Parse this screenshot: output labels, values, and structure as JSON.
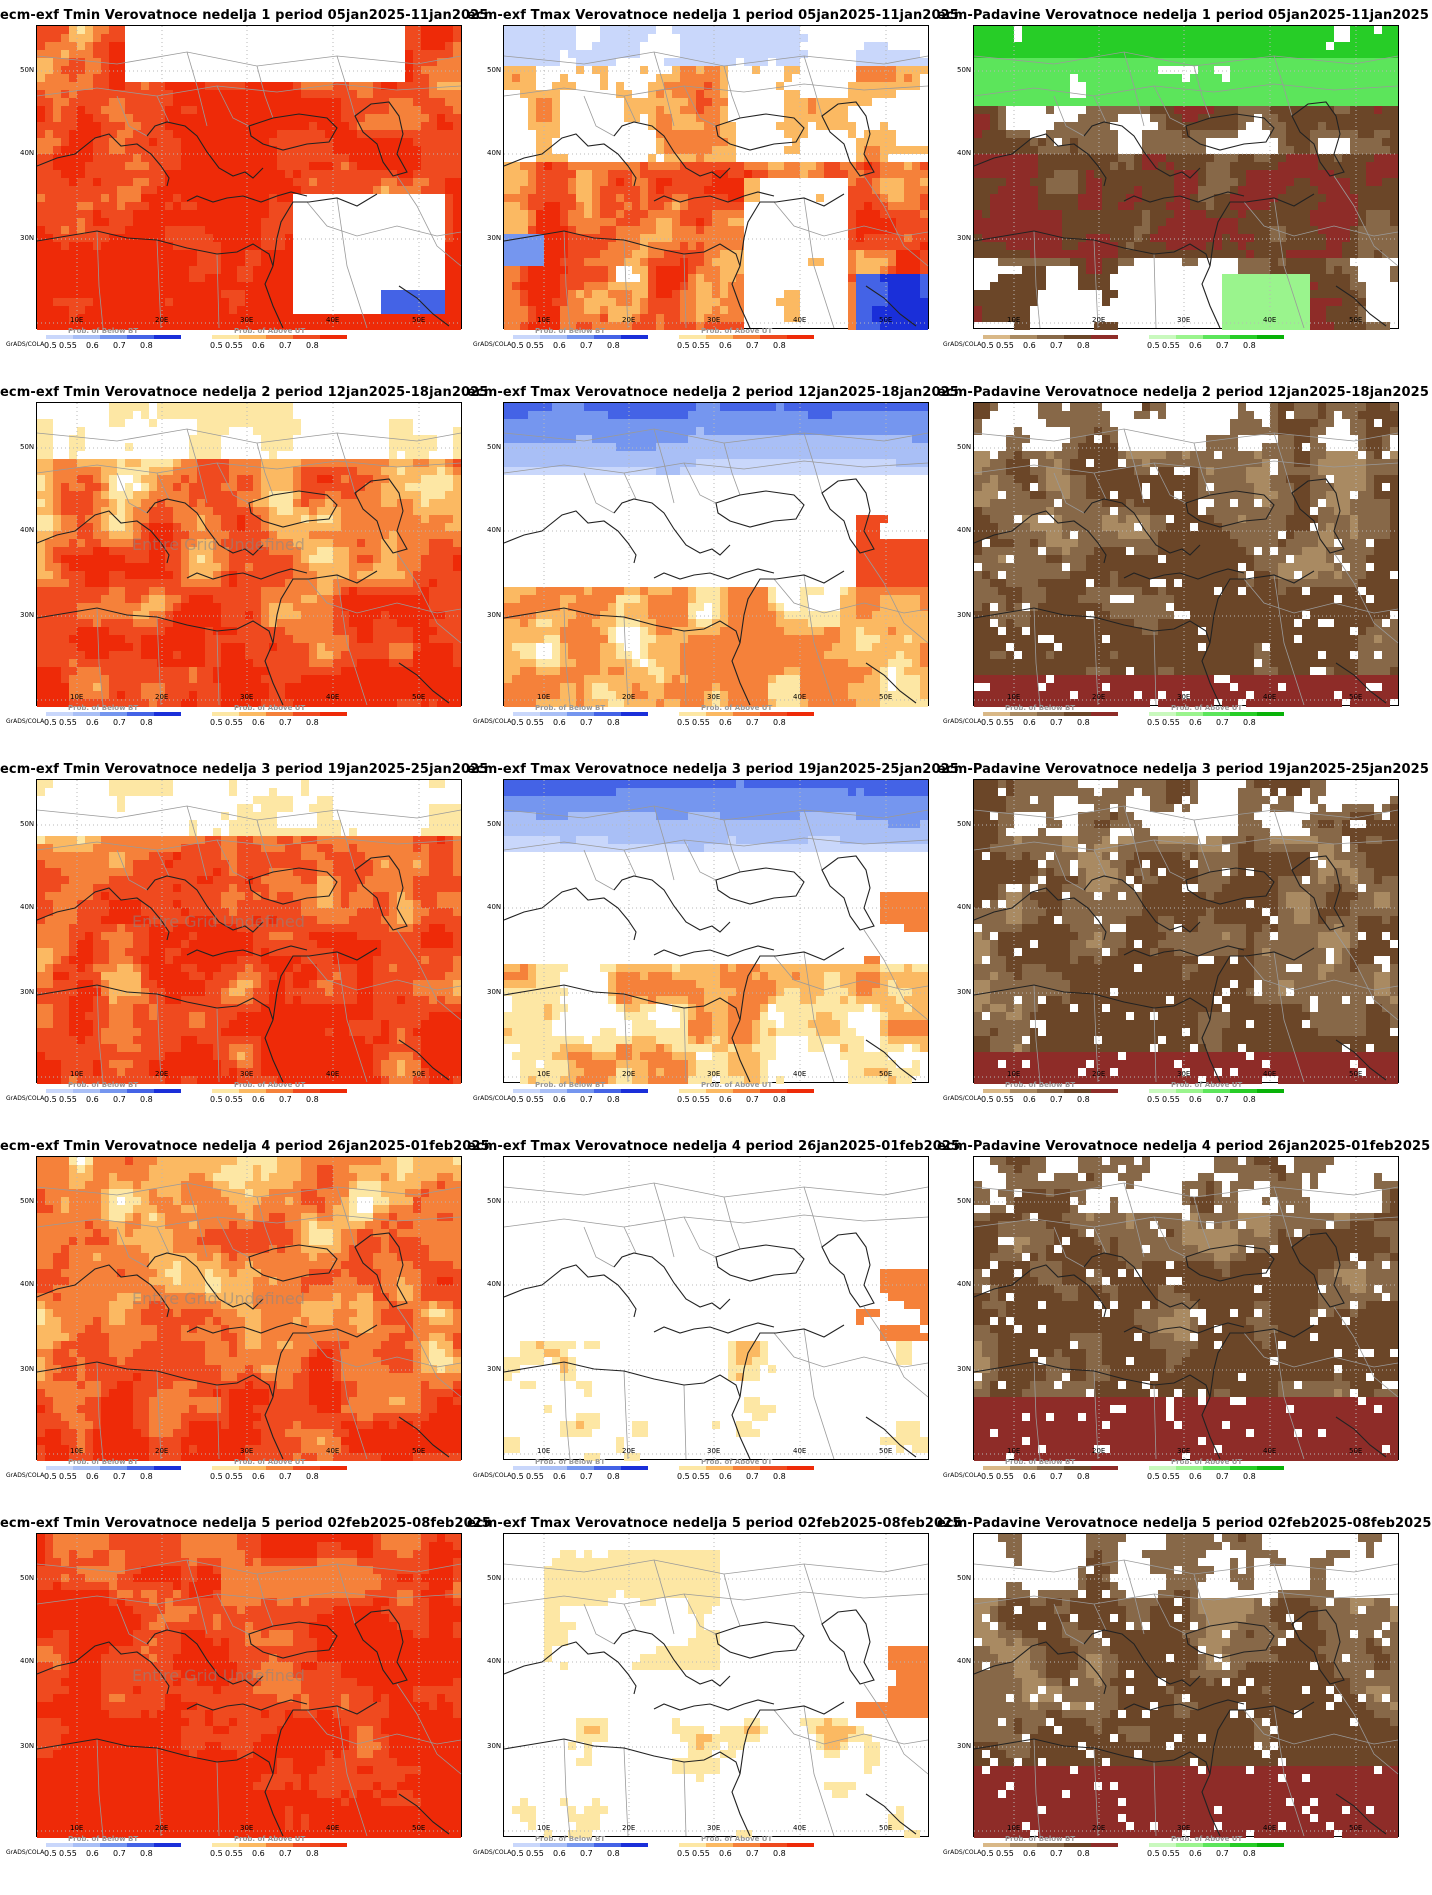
{
  "colors": {
    "red": [
      "#fde7a4",
      "#fbb962",
      "#f5813a",
      "#ef4a1f",
      "#ee2a08"
    ],
    "blue": [
      "#c9d7fb",
      "#a9bff6",
      "#7596ef",
      "#4463e6",
      "#1a2fd9"
    ],
    "brown": [
      "#d9b887",
      "#a98a62",
      "#876848",
      "#6b4628",
      "#8e2c28"
    ],
    "green": [
      "#c9f9be",
      "#9af48d",
      "#5ce55b",
      "#27cd27",
      "#08b208"
    ]
  },
  "axis_labels": {
    "lat": [
      "50N",
      "40N",
      "30N"
    ],
    "lon": [
      "10E",
      "20E",
      "30E",
      "40E",
      "50E"
    ]
  },
  "colorbar": {
    "grads_label": "GrADS/COLA",
    "ticks": [
      "0.5",
      "0.55",
      "0.6",
      "0.7",
      "0.8"
    ]
  },
  "rows": [
    {
      "panels": [
        {
          "title": "ecm-exf Tmin Verovatnoce nedelja 1 period 05jan2025-11jan2025",
          "kind": "tmin",
          "bar1_title": "Prob. of Below BT",
          "bar2_title": "Prob. of Above UT",
          "undefined_note": ""
        },
        {
          "title": "ecm-exf Tmax Verovatnoce nedelja 1 period 05jan2025-11jan2025",
          "kind": "tmax",
          "bar1_title": "Prob. of Below BT",
          "bar2_title": "Prob. of Above UT",
          "undefined_note": ""
        },
        {
          "title": "ecm-Padavine Verovatnoce nedelja 1 period 05jan2025-11jan2025",
          "kind": "precip",
          "bar1_title": "",
          "bar2_title": "",
          "undefined_note": ""
        }
      ]
    },
    {
      "panels": [
        {
          "title": "ecm-exf Tmin Verovatnoce nedelja 2 period 12jan2025-18jan2025",
          "kind": "tmin",
          "bar1_title": "Prob. of Below BT",
          "bar2_title": "Prob. of Above UT",
          "undefined_note": "Entire Grid Undefined"
        },
        {
          "title": "ecm-exf Tmax Verovatnoce nedelja 2 period 12jan2025-18jan2025",
          "kind": "tmax",
          "bar1_title": "Prob. of Below BT",
          "bar2_title": "Prob. of Above UT",
          "undefined_note": ""
        },
        {
          "title": "ecm-Padavine Verovatnoce nedelja 2 period 12jan2025-18jan2025",
          "kind": "precip",
          "bar1_title": "Prob. of Below BT",
          "bar2_title": "Prob. of Above UT",
          "undefined_note": ""
        }
      ]
    },
    {
      "panels": [
        {
          "title": "ecm-exf Tmin Verovatnoce nedelja 3 period 19jan2025-25jan2025",
          "kind": "tmin",
          "bar1_title": "Prob. of Below BT",
          "bar2_title": "Prob. of Above UT",
          "undefined_note": "Entire Grid Undefined"
        },
        {
          "title": "ecm-exf Tmax Verovatnoce nedelja 3 period 19jan2025-25jan2025",
          "kind": "tmax",
          "bar1_title": "Prob. of Below BT",
          "bar2_title": "Prob. of Above UT",
          "undefined_note": ""
        },
        {
          "title": "ecm-Padavine Verovatnoce nedelja 3 period 19jan2025-25jan2025",
          "kind": "precip",
          "bar1_title": "Prob. of Below BT",
          "bar2_title": "Prob. of Above UT",
          "undefined_note": ""
        }
      ]
    },
    {
      "panels": [
        {
          "title": "ecm-exf Tmin Verovatnoce nedelja 4 period 26jan2025-01feb2025",
          "kind": "tmin",
          "bar1_title": "Prob. of Below BT",
          "bar2_title": "Prob. of Above UT",
          "undefined_note": "Entire Grid Undefined"
        },
        {
          "title": "ecm-exf Tmax Verovatnoce nedelja 4 period 26jan2025-01feb2025",
          "kind": "tmax",
          "bar1_title": "Prob. of Below BT",
          "bar2_title": "Prob. of Above UT",
          "undefined_note": ""
        },
        {
          "title": "ecm-Padavine Verovatnoce nedelja 4 period 26jan2025-01feb2025",
          "kind": "precip",
          "bar1_title": "Prob. of Below BT",
          "bar2_title": "Prob. of Above UT",
          "undefined_note": ""
        }
      ]
    },
    {
      "panels": [
        {
          "title": "ecm-exf Tmin Verovatnoce nedelja 5 period 02feb2025-08feb2025",
          "kind": "tmin",
          "bar1_title": "Prob. of Below BT",
          "bar2_title": "Prob. of Above UT",
          "undefined_note": "Entire Grid Undefined"
        },
        {
          "title": "ecm-exf Tmax Verovatnoce nedelja 5 period 02feb2025-08feb2025",
          "kind": "tmax",
          "bar1_title": "Prob. of Below BT",
          "bar2_title": "Prob. of Above UT",
          "undefined_note": ""
        },
        {
          "title": "ecm-Padavine Verovatnoce nedelja 5 period 02feb2025-08feb2025",
          "kind": "precip",
          "bar1_title": "Prob. of Below BT",
          "bar2_title": "Prob. of Above UT",
          "undefined_note": ""
        }
      ]
    }
  ]
}
